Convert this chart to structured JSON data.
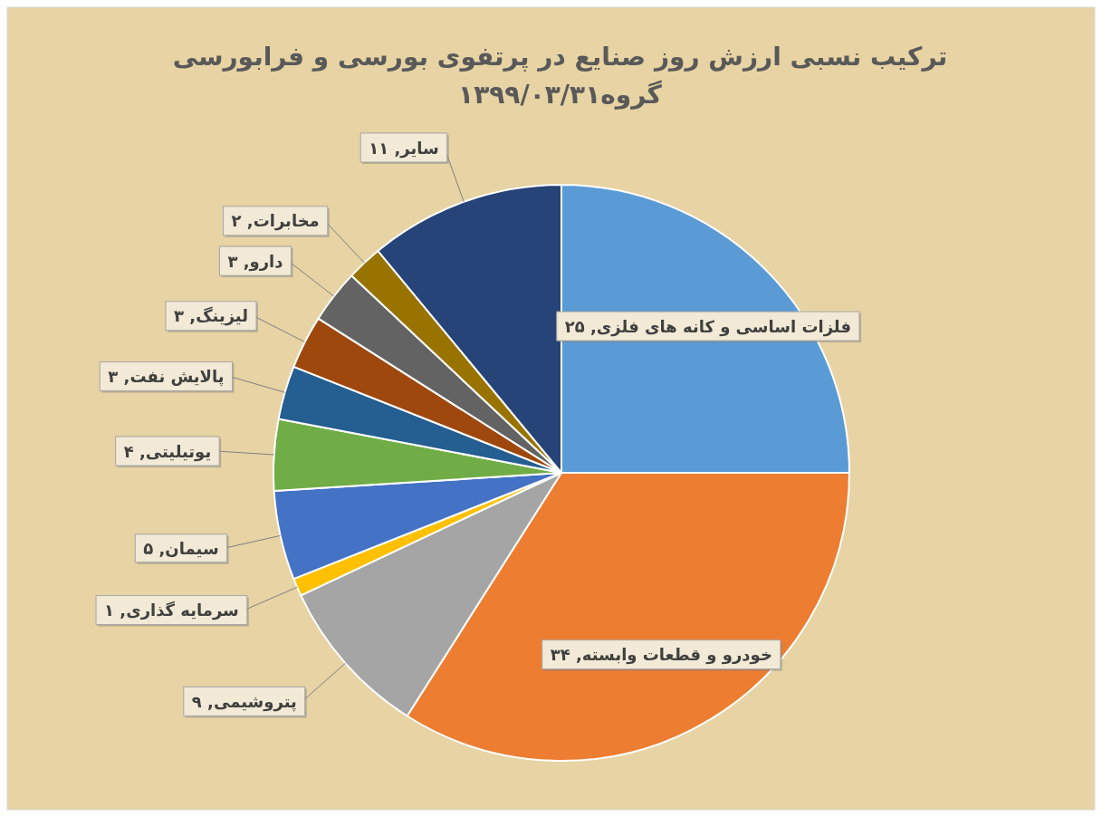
{
  "chart_data": {
    "type": "pie",
    "title": "ترکیب نسبی ارزش روز صنایع در پرتفوی بورسی و فرابورسی",
    "subtitle": "گروه۱۳۹۹/۰۳/۳۱",
    "categories": [
      "فلزات اساسی و کانه های فلزی",
      "خودرو و قطعات وابسته",
      "پتروشیمی",
      "سرمایه گذاری",
      "سیمان",
      "یوتیلیتی",
      "پالایش نفت",
      "لیزینگ",
      "دارو",
      "مخابرات",
      "سایر"
    ],
    "values": [
      25,
      34,
      9,
      1,
      5,
      4,
      3,
      3,
      3,
      2,
      11
    ],
    "value_labels": [
      "۲۵",
      "۳۴",
      "۹",
      "۱",
      "۵",
      "۴",
      "۳",
      "۳",
      "۳",
      "۲",
      "۱۱"
    ],
    "colors": [
      "#5b9bd5",
      "#ed7d31",
      "#a5a5a5",
      "#ffc000",
      "#4472c4",
      "#70ad47",
      "#255e91",
      "#9e480e",
      "#636363",
      "#997300",
      "#264478"
    ]
  }
}
